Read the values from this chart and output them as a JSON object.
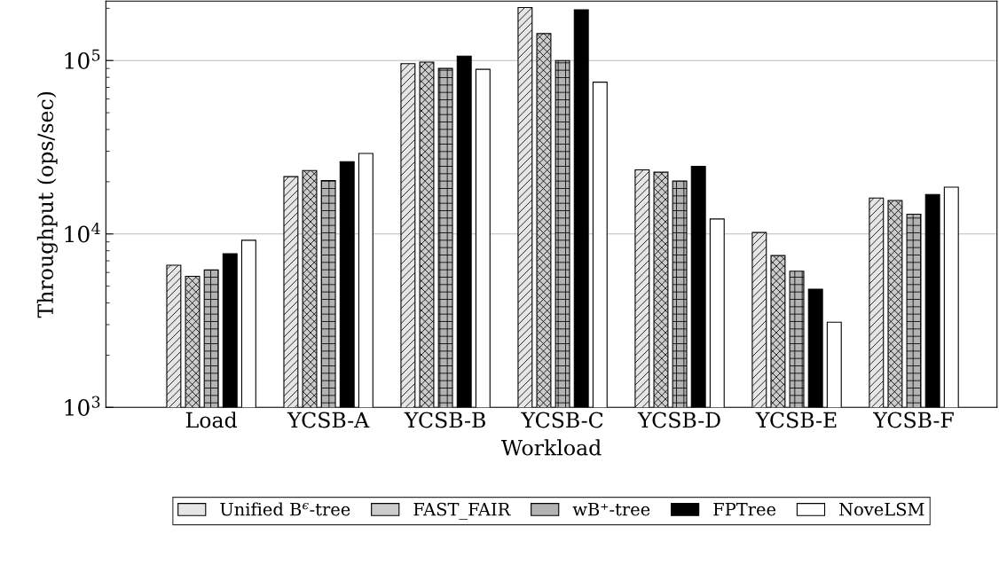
{
  "chart_data": {
    "type": "bar",
    "xlabel": "Workload",
    "ylabel": "Throughput (ops/sec)",
    "categories": [
      "Load",
      "YCSB-A",
      "YCSB-B",
      "YCSB-C",
      "YCSB-D",
      "YCSB-E",
      "YCSB-F"
    ],
    "series": [
      {
        "name": "Unified B$^{ϵ}$-tree",
        "color": "#e6e6e6",
        "values": [
          6600,
          21400,
          96000,
          202000,
          23400,
          10200,
          16100
        ]
      },
      {
        "name": "FAST_FAIR",
        "color": "#cccccc",
        "values": [
          5700,
          23200,
          98000,
          143000,
          22700,
          7500,
          15600
        ]
      },
      {
        "name": "wB⁺-tree",
        "color": "#b3b3b3",
        "values": [
          6200,
          20300,
          90000,
          100000,
          20200,
          6100,
          13000
        ]
      },
      {
        "name": "FPTree",
        "color": "#000000",
        "values": [
          7700,
          26100,
          106000,
          196000,
          24500,
          4800,
          16900
        ]
      },
      {
        "name": "NoveLSM",
        "color": "#ffffff",
        "values": [
          9200,
          29100,
          89000,
          75000,
          12200,
          3100,
          18600
        ]
      }
    ],
    "log": true,
    "ylim": [
      1000,
      220000
    ],
    "yticks": [
      {
        "value": 1000,
        "label": "10$^{3}$"
      },
      {
        "value": 10000,
        "label": "10$^{4}$"
      },
      {
        "value": 100000,
        "label": "10$^{5}$"
      }
    ],
    "grid": "y",
    "legend": "bottom"
  }
}
